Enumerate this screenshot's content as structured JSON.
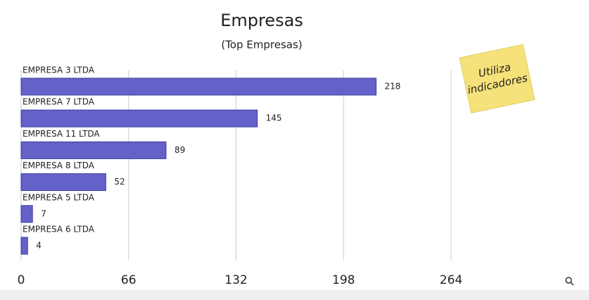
{
  "chart_data": {
    "type": "barh",
    "title": "Empresas",
    "subtitle": "(Top Empresas)",
    "categories": [
      "EMPRESA 3 LTDA",
      "EMPRESA 7 LTDA",
      "EMPRESA 11 LTDA",
      "EMPRESA 8 LTDA",
      "EMPRESA 5 LTDA",
      "EMPRESA 6 LTDA"
    ],
    "values": [
      218,
      145,
      89,
      52,
      7,
      4
    ],
    "color": "#6461c9",
    "xlim": [
      0,
      264
    ],
    "xticks": [
      0,
      66,
      132,
      198,
      264
    ],
    "grid": true
  },
  "note": {
    "lines": [
      "Utiliza",
      "indicadores"
    ]
  }
}
